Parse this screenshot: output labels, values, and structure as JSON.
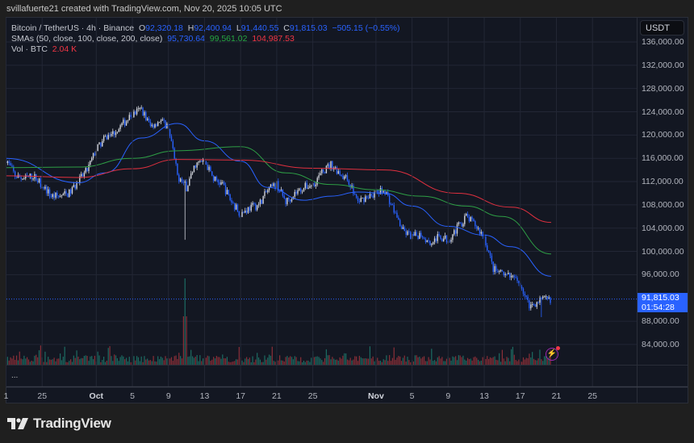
{
  "credit": "svillafuerte21 created with TradingView.com, Nov 20, 2025 10:05 UTC",
  "legend": {
    "symbol": "Bitcoin / TetherUS · 4h · Binance",
    "o_label": "O",
    "o": "92,320.18",
    "h_label": "H",
    "h": "92,400.94",
    "l_label": "L",
    "l": "91,440.55",
    "c_label": "C",
    "c": "91,815.03",
    "change": "−505.15 (−0.55%)",
    "sma_label": "SMAs (50, close, 100, close, 200, close)",
    "sma50": "95,730.64",
    "sma100": "99,561.02",
    "sma200": "104,987.53",
    "vol_label": "Vol · BTC",
    "vol": "2.04 K"
  },
  "currency": "USDT",
  "last_price": {
    "price": "91,815.03",
    "countdown": "01:54:28"
  },
  "more": "...",
  "brand": "TradingView",
  "icons": {
    "alert": "lightning-icon",
    "logo": "tradingview-logo-icon"
  },
  "colors": {
    "up": "#d1d4dc",
    "down": "#2962ff",
    "vol_up": "#1d6b62",
    "vol_down": "#8a2f38",
    "sma50": "#2962ff",
    "sma100": "#2e9e45",
    "sma200": "#e0303f",
    "last_price": "#2962ff"
  },
  "chart_data": {
    "type": "candlestick",
    "interval": "4h",
    "ylim": [
      80000,
      138000
    ],
    "y_ticks": [
      "136,000.00",
      "132,000.00",
      "128,000.00",
      "124,000.00",
      "120,000.00",
      "116,000.00",
      "112,000.00",
      "108,000.00",
      "104,000.00",
      "100,000.00",
      "96,000.00",
      "88,000.00",
      "84,000.00"
    ],
    "y_tick_values": [
      136000,
      132000,
      128000,
      124000,
      120000,
      116000,
      112000,
      108000,
      104000,
      100000,
      96000,
      88000,
      84000
    ],
    "x_ticks": [
      {
        "label": "1",
        "date": "2025-09-21"
      },
      {
        "label": "25",
        "date": "2025-09-25"
      },
      {
        "label": "Oct",
        "date": "2025-10-01",
        "bold": true
      },
      {
        "label": "5",
        "date": "2025-10-05"
      },
      {
        "label": "9",
        "date": "2025-10-09"
      },
      {
        "label": "13",
        "date": "2025-10-13"
      },
      {
        "label": "17",
        "date": "2025-10-17"
      },
      {
        "label": "21",
        "date": "2025-10-21"
      },
      {
        "label": "25",
        "date": "2025-10-25"
      },
      {
        "label": "Nov",
        "date": "2025-11-01",
        "bold": true
      },
      {
        "label": "5",
        "date": "2025-11-05"
      },
      {
        "label": "9",
        "date": "2025-11-09"
      },
      {
        "label": "13",
        "date": "2025-11-13"
      },
      {
        "label": "17",
        "date": "2025-11-17"
      },
      {
        "label": "21",
        "date": "2025-11-21"
      },
      {
        "label": "25",
        "date": "2025-11-25"
      }
    ],
    "grid": true,
    "daily_closes": [
      [
        "2025-09-21",
        115900
      ],
      [
        "2025-09-22",
        113000
      ],
      [
        "2025-09-23",
        112500
      ],
      [
        "2025-09-24",
        113000
      ],
      [
        "2025-09-25",
        111500
      ],
      [
        "2025-09-26",
        109500
      ],
      [
        "2025-09-27",
        109500
      ],
      [
        "2025-09-28",
        110000
      ],
      [
        "2025-09-29",
        112000
      ],
      [
        "2025-09-30",
        114000
      ],
      [
        "2025-10-01",
        117500
      ],
      [
        "2025-10-02",
        119500
      ],
      [
        "2025-10-03",
        120500
      ],
      [
        "2025-10-04",
        122000
      ],
      [
        "2025-10-05",
        123500
      ],
      [
        "2025-10-06",
        124500
      ],
      [
        "2025-10-07",
        121500
      ],
      [
        "2025-10-08",
        122500
      ],
      [
        "2025-10-09",
        121500
      ],
      [
        "2025-10-10",
        113000
      ],
      [
        "2025-10-11",
        111000
      ],
      [
        "2025-10-12",
        115000
      ],
      [
        "2025-10-13",
        115500
      ],
      [
        "2025-10-14",
        112500
      ],
      [
        "2025-10-15",
        111500
      ],
      [
        "2025-10-16",
        108500
      ],
      [
        "2025-10-17",
        106500
      ],
      [
        "2025-10-18",
        107500
      ],
      [
        "2025-10-19",
        108000
      ],
      [
        "2025-10-20",
        110500
      ],
      [
        "2025-10-21",
        111500
      ],
      [
        "2025-10-22",
        108500
      ],
      [
        "2025-10-23",
        110000
      ],
      [
        "2025-10-24",
        111000
      ],
      [
        "2025-10-25",
        111500
      ],
      [
        "2025-10-26",
        113500
      ],
      [
        "2025-10-27",
        115000
      ],
      [
        "2025-10-28",
        113500
      ],
      [
        "2025-10-29",
        112000
      ],
      [
        "2025-10-30",
        108500
      ],
      [
        "2025-10-31",
        109500
      ],
      [
        "2025-11-01",
        110000
      ],
      [
        "2025-11-02",
        110500
      ],
      [
        "2025-11-03",
        107000
      ],
      [
        "2025-11-04",
        103500
      ],
      [
        "2025-11-05",
        102500
      ],
      [
        "2025-11-06",
        103000
      ],
      [
        "2025-11-07",
        101500
      ],
      [
        "2025-11-08",
        102500
      ],
      [
        "2025-11-09",
        102000
      ],
      [
        "2025-11-10",
        104000
      ],
      [
        "2025-11-11",
        106000
      ],
      [
        "2025-11-12",
        104500
      ],
      [
        "2025-11-13",
        102500
      ],
      [
        "2025-11-14",
        97000
      ],
      [
        "2025-11-15",
        96000
      ],
      [
        "2025-11-16",
        95500
      ],
      [
        "2025-11-17",
        94500
      ],
      [
        "2025-11-18",
        90500
      ],
      [
        "2025-11-19",
        91500
      ],
      [
        "2025-11-20T10:00",
        91815.03
      ]
    ],
    "extremes": [
      {
        "date": "2025-10-10T20:00",
        "low": 102000
      },
      {
        "date": "2025-11-19T08:00",
        "low": 88700
      }
    ],
    "sma_series": [
      {
        "name": "SMA 50",
        "color": "#2962ff",
        "points": [
          [
            "2025-09-21",
            116000
          ],
          [
            "2025-09-29",
            111800
          ],
          [
            "2025-10-02",
            113500
          ],
          [
            "2025-10-06",
            119500
          ],
          [
            "2025-10-10",
            122000
          ],
          [
            "2025-10-13",
            119000
          ],
          [
            "2025-10-17",
            115500
          ],
          [
            "2025-10-20",
            111000
          ],
          [
            "2025-10-24",
            108800
          ],
          [
            "2025-10-27",
            109500
          ],
          [
            "2025-10-30",
            110200
          ],
          [
            "2025-11-02",
            110000
          ],
          [
            "2025-11-05",
            107800
          ],
          [
            "2025-11-09",
            104300
          ],
          [
            "2025-11-13",
            102800
          ],
          [
            "2025-11-16",
            100800
          ],
          [
            "2025-11-20T10:00",
            95730.64
          ]
        ]
      },
      {
        "name": "SMA 100",
        "color": "#2e9e45",
        "points": [
          [
            "2025-09-21",
            114400
          ],
          [
            "2025-09-29",
            114500
          ],
          [
            "2025-10-05",
            116000
          ],
          [
            "2025-10-10",
            117300
          ],
          [
            "2025-10-17",
            118000
          ],
          [
            "2025-10-22",
            113500
          ],
          [
            "2025-10-27",
            111500
          ],
          [
            "2025-11-01",
            110600
          ],
          [
            "2025-11-06",
            109500
          ],
          [
            "2025-11-11",
            107800
          ],
          [
            "2025-11-15",
            106000
          ],
          [
            "2025-11-20T10:00",
            99561.02
          ]
        ]
      },
      {
        "name": "SMA 200",
        "color": "#e0303f",
        "points": [
          [
            "2025-09-21",
            113000
          ],
          [
            "2025-09-29",
            112700
          ],
          [
            "2025-10-05",
            114200
          ],
          [
            "2025-10-10",
            115800
          ],
          [
            "2025-10-17",
            115700
          ],
          [
            "2025-10-25",
            114300
          ],
          [
            "2025-11-02",
            114000
          ],
          [
            "2025-11-10",
            110000
          ],
          [
            "2025-11-16",
            107600
          ],
          [
            "2025-11-20T10:00",
            104987.53
          ]
        ]
      }
    ],
    "volume_spike": {
      "date": "2025-10-10T20:00"
    }
  }
}
